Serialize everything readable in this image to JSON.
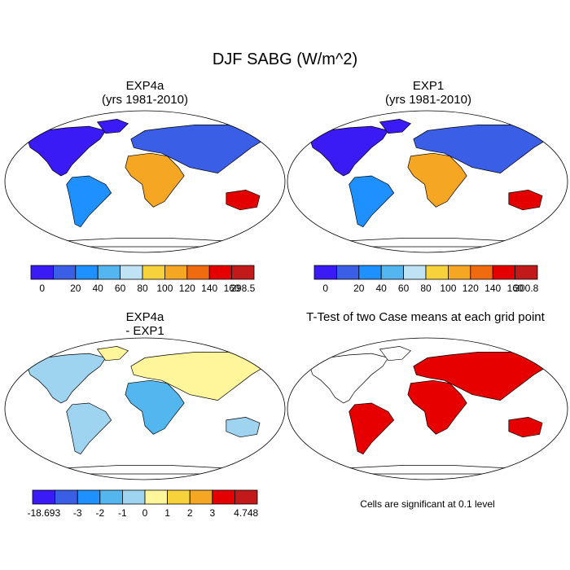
{
  "figure_title": "DJF SABG (W/m^2)",
  "chart_data": [
    {
      "type": "map",
      "title_line1": "EXP4a",
      "title_line2": "(yrs 1981-2010)",
      "colorbar": {
        "labels": [
          "0",
          "20",
          "40",
          "60",
          "80",
          "100",
          "120",
          "140",
          "160",
          "298.5"
        ],
        "colors": [
          "#3a1af5",
          "#3b5ee6",
          "#1e90ff",
          "#54b6ee",
          "#bfe3f5",
          "#f7d23a",
          "#f5a623",
          "#f06a0f",
          "#e50000",
          "#c21a1a"
        ]
      }
    },
    {
      "type": "map",
      "title_line1": "EXP1",
      "title_line2": "(yrs 1981-2010)",
      "colorbar": {
        "labels": [
          "0",
          "20",
          "40",
          "60",
          "80",
          "100",
          "120",
          "140",
          "160",
          "300.8"
        ],
        "colors": [
          "#3a1af5",
          "#3b5ee6",
          "#1e90ff",
          "#54b6ee",
          "#bfe3f5",
          "#f7d23a",
          "#f5a623",
          "#f06a0f",
          "#e50000",
          "#c21a1a"
        ]
      }
    },
    {
      "type": "map",
      "title_line1": "EXP4a",
      "title_line2": "- EXP1",
      "colorbar": {
        "labels": [
          "-18.693",
          "-3",
          "-2",
          "-1",
          "0",
          "1",
          "2",
          "3",
          "4.748"
        ],
        "colors": [
          "#3a1af5",
          "#3b5ee6",
          "#1e90ff",
          "#54b6ee",
          "#9fd4f0",
          "#fff59a",
          "#f7d23a",
          "#f5a623",
          "#e50000",
          "#c21a1a"
        ]
      }
    },
    {
      "type": "map",
      "title_line1": "T-Test of two Case means at each grid point",
      "note": "Cells are significant at 0.1 level"
    }
  ],
  "palette": {
    "ocean": "#ffffff",
    "coast": "#000000",
    "sig": "#e60000"
  }
}
